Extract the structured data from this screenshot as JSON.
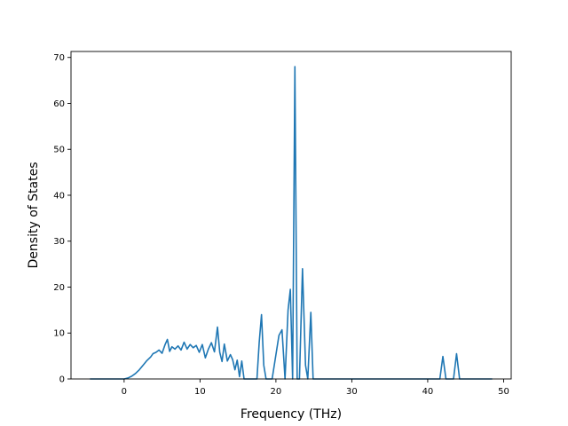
{
  "chart_data": {
    "type": "line",
    "title": "",
    "xlabel": "Frequency (THz)",
    "ylabel": "Density of States",
    "xlim": [
      -7,
      51
    ],
    "ylim": [
      0,
      71.3
    ],
    "xticks": [
      0,
      10,
      20,
      30,
      40,
      50
    ],
    "yticks": [
      0,
      10,
      20,
      30,
      40,
      50,
      60,
      70
    ],
    "grid": false,
    "legend": "none",
    "series": [
      {
        "color": "#1f77b4",
        "x": [
          -4.5,
          0,
          0.5,
          1,
          1.5,
          2,
          2.5,
          3,
          3.5,
          3.8,
          4.2,
          4.6,
          5,
          5.4,
          5.7,
          6,
          6.3,
          6.7,
          7.1,
          7.5,
          7.9,
          8.3,
          8.7,
          9.1,
          9.5,
          9.9,
          10.3,
          10.7,
          11.1,
          11.5,
          11.9,
          12.3,
          12.6,
          12.9,
          13.2,
          13.6,
          14,
          14.3,
          14.6,
          14.9,
          15.2,
          15.5,
          15.8,
          16.2,
          17.5,
          17.8,
          18.1,
          18.4,
          18.7,
          19.5,
          20.4,
          20.8,
          21.2,
          21.6,
          21.9,
          22.2,
          22.5,
          22.8,
          23.1,
          23.5,
          23.9,
          24.2,
          24.6,
          24.9,
          25.3,
          41.6,
          42,
          42.4,
          43.4,
          43.8,
          44.2,
          48.5
        ],
        "y": [
          0,
          0,
          0.2,
          0.6,
          1.2,
          2.0,
          3.0,
          4.0,
          4.8,
          5.5,
          5.8,
          6.3,
          5.6,
          7.5,
          8.6,
          6.0,
          7.0,
          6.5,
          7.2,
          6.3,
          8.0,
          6.5,
          7.5,
          6.8,
          7.3,
          5.8,
          7.5,
          4.6,
          6.5,
          7.9,
          5.9,
          11.3,
          5.8,
          3.8,
          7.6,
          3.9,
          5.3,
          4.2,
          2.0,
          4.1,
          0.5,
          3.9,
          0,
          0,
          0,
          8.0,
          14.0,
          3.0,
          0,
          0,
          9.5,
          10.7,
          0,
          15.0,
          19.5,
          0,
          68.0,
          0,
          0,
          24.0,
          3.0,
          0,
          14.5,
          0,
          0,
          0,
          4.9,
          0,
          0,
          5.5,
          0,
          0
        ]
      }
    ]
  }
}
